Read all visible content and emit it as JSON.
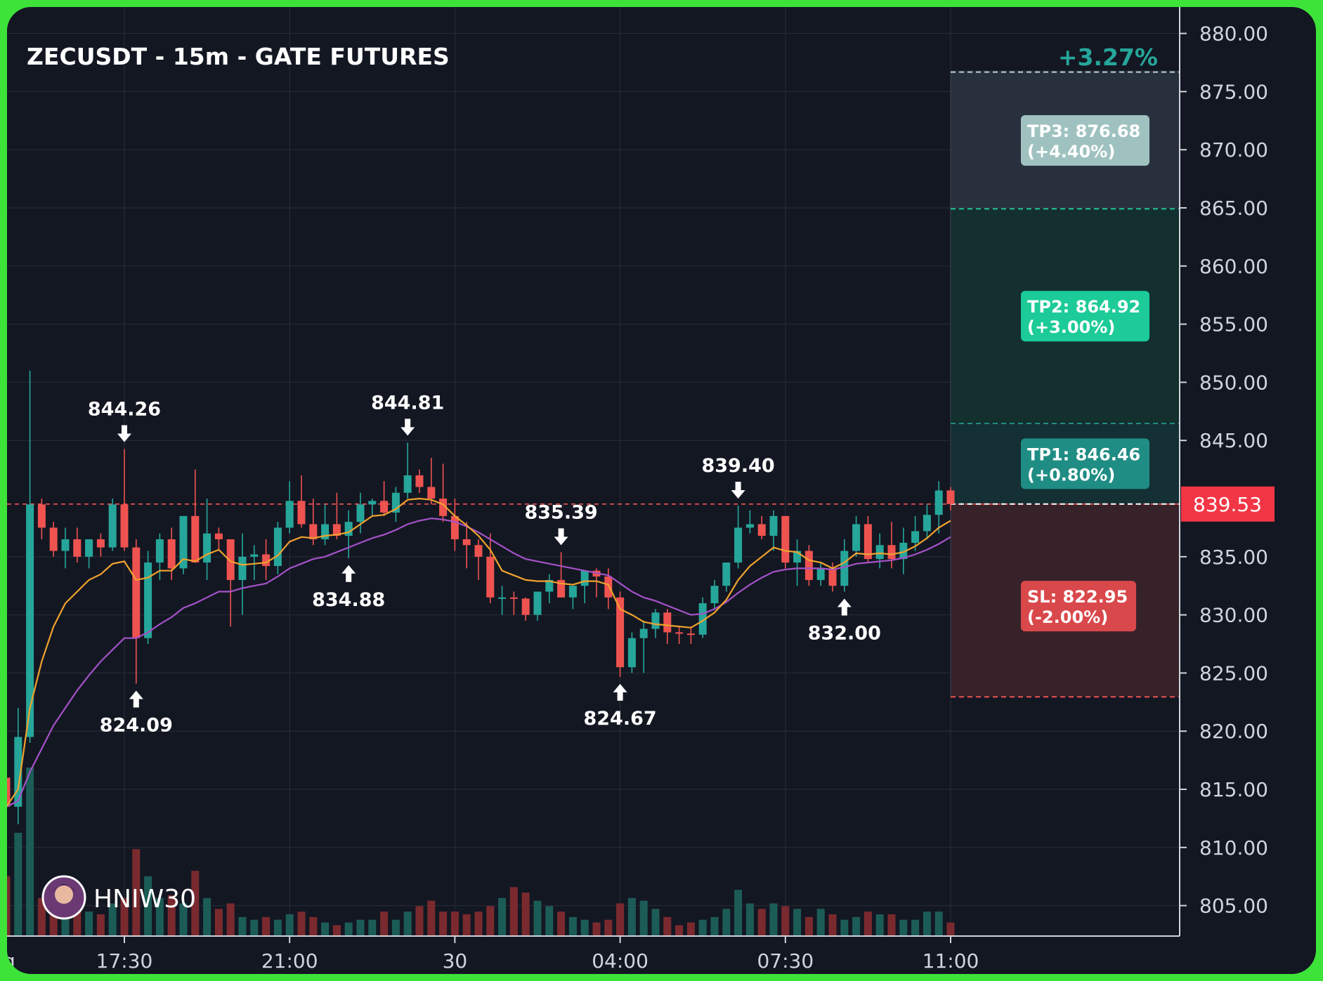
{
  "chart_data": {
    "type": "candlestick",
    "title": "ZECUSDT - 15m - GATE FUTURES",
    "performance": "+3.27%",
    "watermark": "HNIW30",
    "current_price": "839.53",
    "ylim": [
      802,
      882
    ],
    "y_ticks": [
      "880.00",
      "875.00",
      "870.00",
      "865.00",
      "860.00",
      "855.00",
      "850.00",
      "845.00",
      "835.00",
      "830.00",
      "825.00",
      "820.00",
      "815.00",
      "810.00",
      "805.00"
    ],
    "x_labels": [
      {
        "i": 10,
        "label": "17:30"
      },
      {
        "i": 24,
        "label": "21:00"
      },
      {
        "i": 38,
        "label": "30"
      },
      {
        "i": 52,
        "label": "04:00"
      },
      {
        "i": 66,
        "label": "07:30"
      },
      {
        "i": 80,
        "label": "11:00"
      }
    ],
    "x_left_fragment": "g",
    "candles": [
      [
        816.0,
        816.0,
        810.0,
        813.5
      ],
      [
        813.5,
        822.0,
        812.0,
        819.5
      ],
      [
        819.5,
        851.0,
        819.0,
        839.5
      ],
      [
        839.5,
        840.0,
        836.5,
        837.5
      ],
      [
        837.5,
        838.0,
        835.0,
        835.5
      ],
      [
        835.5,
        837.5,
        834.0,
        836.5
      ],
      [
        836.5,
        837.5,
        834.5,
        835.0
      ],
      [
        835.0,
        836.5,
        834.0,
        836.5
      ],
      [
        836.5,
        837.0,
        835.0,
        835.8
      ],
      [
        835.8,
        840.0,
        835.5,
        839.5
      ],
      [
        839.5,
        844.26,
        835.5,
        835.8
      ],
      [
        835.8,
        836.5,
        824.09,
        828.0
      ],
      [
        828.0,
        835.5,
        827.5,
        834.5
      ],
      [
        834.5,
        837.0,
        833.0,
        836.5
      ],
      [
        836.5,
        837.5,
        833.0,
        834.0
      ],
      [
        834.0,
        838.0,
        833.5,
        838.5
      ],
      [
        838.5,
        842.5,
        834.5,
        834.5
      ],
      [
        834.5,
        840.0,
        833.0,
        837.0
      ],
      [
        837.0,
        837.5,
        835.5,
        836.5
      ],
      [
        836.5,
        836.5,
        829.0,
        833.0
      ],
      [
        833.0,
        837.0,
        830.0,
        835.0
      ],
      [
        835.0,
        836.0,
        833.0,
        835.2
      ],
      [
        835.2,
        836.5,
        833.0,
        834.2
      ],
      [
        834.2,
        838.0,
        833.5,
        837.5
      ],
      [
        837.5,
        841.5,
        837.0,
        839.8
      ],
      [
        839.8,
        842.0,
        837.5,
        837.8
      ],
      [
        837.8,
        840.0,
        836.0,
        836.5
      ],
      [
        836.5,
        839.5,
        836.0,
        837.8
      ],
      [
        837.8,
        840.5,
        836.5,
        836.8
      ],
      [
        836.8,
        839.0,
        834.88,
        838.0
      ],
      [
        838.0,
        840.5,
        837.0,
        839.5
      ],
      [
        839.5,
        840.0,
        838.5,
        839.8
      ],
      [
        839.8,
        841.5,
        838.5,
        838.8
      ],
      [
        838.8,
        841.0,
        838.0,
        840.5
      ],
      [
        840.5,
        844.81,
        840.0,
        842.0
      ],
      [
        842.0,
        842.5,
        840.5,
        841.0
      ],
      [
        841.0,
        843.5,
        839.5,
        840.0
      ],
      [
        840.0,
        843.0,
        838.0,
        838.5
      ],
      [
        838.5,
        840.0,
        835.5,
        836.5
      ],
      [
        836.5,
        838.0,
        834.0,
        836.0
      ],
      [
        836.0,
        836.5,
        833.0,
        835.0
      ],
      [
        835.0,
        837.0,
        831.0,
        831.5
      ],
      [
        831.5,
        832.5,
        830.0,
        831.5
      ],
      [
        831.5,
        832.0,
        830.0,
        831.4
      ],
      [
        831.4,
        831.5,
        829.5,
        830.0
      ],
      [
        830.0,
        832.0,
        829.5,
        832.0
      ],
      [
        832.0,
        833.5,
        831.0,
        833.0
      ],
      [
        833.0,
        835.39,
        831.5,
        831.5
      ],
      [
        831.5,
        832.5,
        830.5,
        832.5
      ],
      [
        832.5,
        833.5,
        831.0,
        833.8
      ],
      [
        833.8,
        834.0,
        831.5,
        833.3
      ],
      [
        833.3,
        834.0,
        830.5,
        831.5
      ],
      [
        831.5,
        832.0,
        824.67,
        825.5
      ],
      [
        825.5,
        828.5,
        825.0,
        828.0
      ],
      [
        828.0,
        829.5,
        825.0,
        828.8
      ],
      [
        828.8,
        830.5,
        828.0,
        830.2
      ],
      [
        830.2,
        830.5,
        827.5,
        828.5
      ],
      [
        828.5,
        829.0,
        827.5,
        828.4
      ],
      [
        828.4,
        829.0,
        827.5,
        828.3
      ],
      [
        828.3,
        831.5,
        828.0,
        831.0
      ],
      [
        831.0,
        833.0,
        830.5,
        832.5
      ],
      [
        832.5,
        834.5,
        832.0,
        834.5
      ],
      [
        834.5,
        839.4,
        834.0,
        837.5
      ],
      [
        837.5,
        839.0,
        837.0,
        837.8
      ],
      [
        837.8,
        838.5,
        836.5,
        836.8
      ],
      [
        836.8,
        839.0,
        835.5,
        838.5
      ],
      [
        838.5,
        838.5,
        834.0,
        834.5
      ],
      [
        834.5,
        836.5,
        832.5,
        835.5
      ],
      [
        835.5,
        836.0,
        832.5,
        833.0
      ],
      [
        833.0,
        834.5,
        832.5,
        834.0
      ],
      [
        834.0,
        834.5,
        832.0,
        832.5
      ],
      [
        832.5,
        836.5,
        832.0,
        835.5
      ],
      [
        835.5,
        838.5,
        835.0,
        837.8
      ],
      [
        837.8,
        838.5,
        834.5,
        834.8
      ],
      [
        834.8,
        837.0,
        834.0,
        836.0
      ],
      [
        836.0,
        838.0,
        834.0,
        834.8
      ],
      [
        834.8,
        837.5,
        833.5,
        836.2
      ],
      [
        836.2,
        838.5,
        835.5,
        837.2
      ],
      [
        837.2,
        839.5,
        836.5,
        838.6
      ],
      [
        838.6,
        841.5,
        837.0,
        840.7
      ],
      [
        840.7,
        841.0,
        839.0,
        839.53
      ]
    ],
    "ema_fast": [
      813.5,
      815.0,
      822.0,
      826.0,
      829.0,
      831.0,
      832.0,
      833.0,
      833.5,
      834.4,
      834.6,
      833.0,
      833.2,
      833.8,
      833.8,
      834.8,
      834.6,
      835.2,
      835.6,
      834.6,
      834.3,
      834.4,
      834.5,
      835.1,
      836.3,
      836.7,
      836.6,
      836.8,
      836.9,
      837.1,
      837.8,
      838.5,
      838.6,
      839.1,
      839.9,
      840.0,
      839.9,
      839.5,
      838.5,
      837.7,
      836.8,
      835.6,
      833.8,
      833.4,
      833.0,
      832.9,
      832.9,
      832.7,
      832.6,
      832.9,
      832.9,
      832.6,
      830.5,
      830.0,
      829.4,
      829.2,
      829.1,
      829.0,
      828.9,
      829.5,
      830.2,
      831.3,
      833.0,
      834.2,
      835.0,
      835.8,
      835.5,
      835.4,
      834.7,
      834.5,
      834.0,
      834.5,
      835.3,
      835.2,
      835.3,
      835.2,
      835.4,
      835.9,
      836.6,
      837.5,
      838.1
    ],
    "ema_slow": [
      813.5,
      814.0,
      816.5,
      818.5,
      820.5,
      822.0,
      823.5,
      824.8,
      826.0,
      827.0,
      828.0,
      828.0,
      828.5,
      829.2,
      829.8,
      830.6,
      831.0,
      831.5,
      832.0,
      832.0,
      832.3,
      832.5,
      832.7,
      833.3,
      834.0,
      834.4,
      834.8,
      835.0,
      835.4,
      835.8,
      836.2,
      836.6,
      836.9,
      837.3,
      837.8,
      838.1,
      838.3,
      838.2,
      838.0,
      837.6,
      837.1,
      836.5,
      835.9,
      835.3,
      834.8,
      834.6,
      834.4,
      834.2,
      834.0,
      833.8,
      833.6,
      833.4,
      832.7,
      832.0,
      831.5,
      831.2,
      830.8,
      830.4,
      830.0,
      830.1,
      830.5,
      831.1,
      831.9,
      832.6,
      833.2,
      833.7,
      833.9,
      834.0,
      834.0,
      834.0,
      833.9,
      834.1,
      834.4,
      834.5,
      834.6,
      834.7,
      834.9,
      835.2,
      835.6,
      836.1,
      836.7
    ],
    "volume": [
      22,
      38,
      62,
      14,
      12,
      11,
      12,
      9,
      8,
      12,
      14,
      32,
      22,
      14,
      15,
      12,
      24,
      14,
      10,
      12,
      7,
      6,
      7,
      6,
      8,
      9,
      7,
      5,
      4,
      5,
      6,
      6,
      9,
      6,
      9,
      11,
      13,
      9,
      9,
      8,
      9,
      11,
      14,
      18,
      16,
      13,
      11,
      9,
      7,
      6,
      5,
      6,
      12,
      14,
      13,
      10,
      7,
      4,
      5,
      6,
      7,
      10,
      17,
      12,
      10,
      12,
      11,
      10,
      7,
      10,
      8,
      6,
      7,
      9,
      8,
      8,
      6,
      6,
      9,
      9,
      5
    ],
    "swing_labels": [
      {
        "i": 10,
        "dir": "high",
        "text": "844.26"
      },
      {
        "i": 34,
        "dir": "high",
        "text": "844.81"
      },
      {
        "i": 47,
        "dir": "high",
        "text": "835.39"
      },
      {
        "i": 62,
        "dir": "high",
        "text": "839.40"
      },
      {
        "i": 11,
        "dir": "low",
        "text": "824.09"
      },
      {
        "i": 29,
        "dir": "low",
        "text": "834.88"
      },
      {
        "i": 52,
        "dir": "low",
        "text": "824.67"
      },
      {
        "i": 71,
        "dir": "low",
        "text": "832.00"
      }
    ],
    "levels": {
      "entry": 839.53,
      "tp1": {
        "price": 846.46,
        "line1": "TP1: 846.46",
        "line2": "(+0.80%)"
      },
      "tp2": {
        "price": 864.92,
        "line1": "TP2: 864.92",
        "line2": "(+3.00%)"
      },
      "tp3": {
        "price": 876.68,
        "line1": "TP3: 876.68",
        "line2": "(+4.40%)"
      },
      "sl": {
        "price": 822.95,
        "line1": "SL: 822.95",
        "line2": "(-2.00%)"
      }
    },
    "colors": {
      "background": "#131722",
      "grid": "#2a2e39",
      "up": "#26a69a",
      "down": "#ef5350",
      "ema_fast": "#f0a22e",
      "ema_slow": "#a452c8",
      "tp1_box": "#1f8d84",
      "tp2_box": "#1ccb97",
      "tp3_box": "#9fc2c0",
      "sl_box": "#d9484b",
      "price_tag": "#f23645",
      "perf_text": "#26a69a",
      "frame": "#3ee33a"
    }
  }
}
